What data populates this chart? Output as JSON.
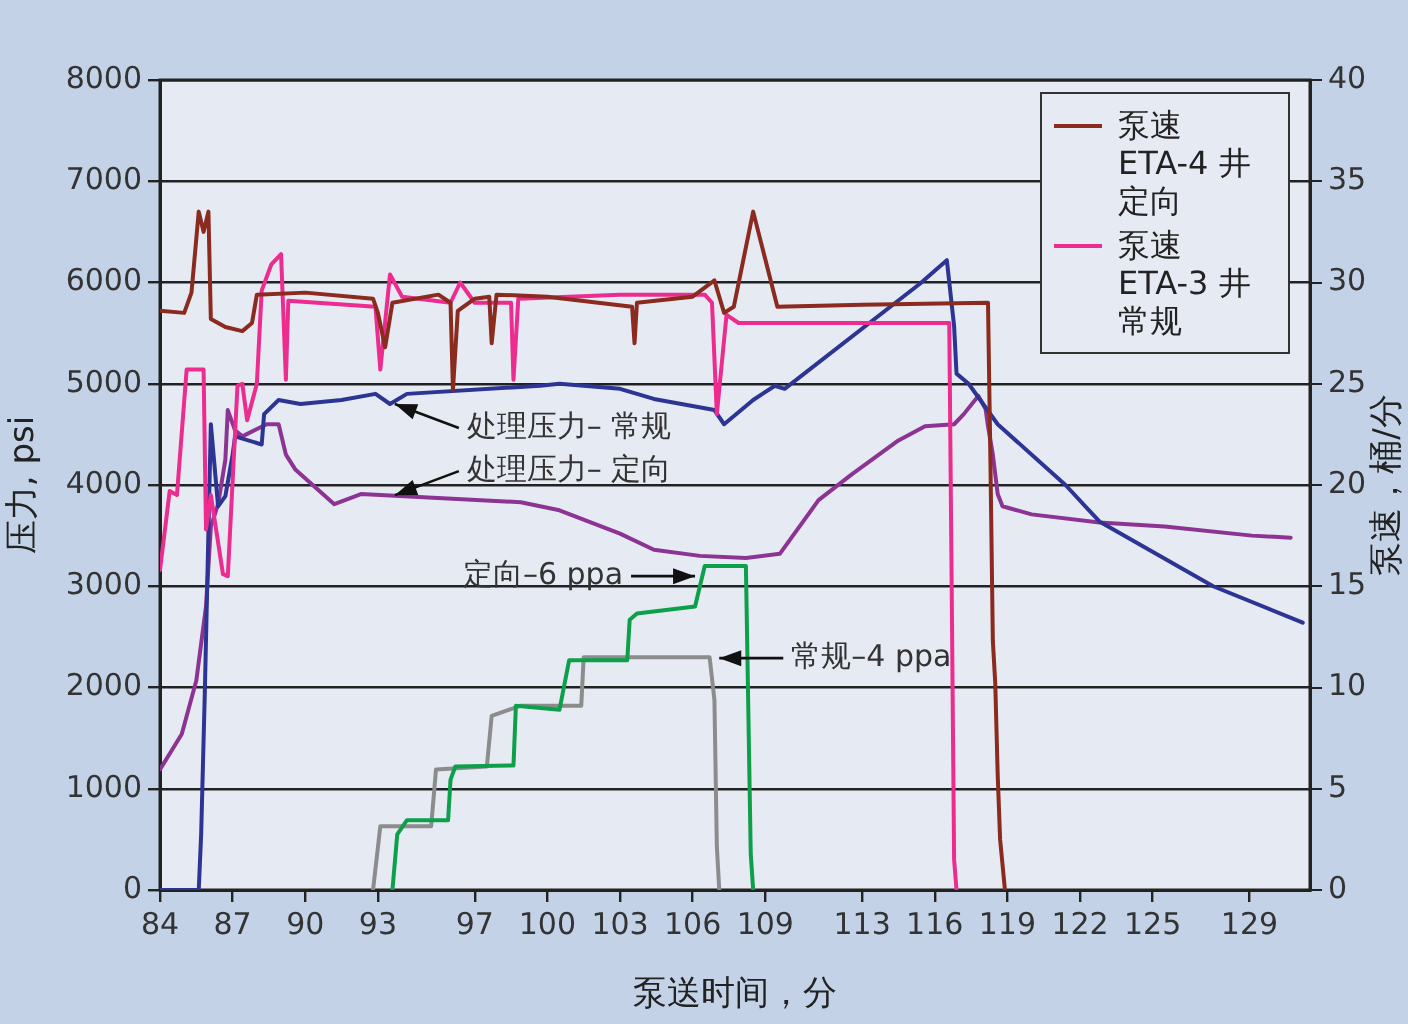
{
  "chart_data": {
    "type": "line",
    "xlabel": "泵送时间，分",
    "ylabel": "压力, psi",
    "y2label": "泵速，桶/分",
    "xlim": [
      84,
      131.5
    ],
    "xticks": [
      84,
      87,
      90,
      93,
      97,
      100,
      103,
      106,
      109,
      113,
      116,
      119,
      122,
      125,
      129
    ],
    "ylim": [
      0,
      8000
    ],
    "yticks": [
      0,
      1000,
      2000,
      3000,
      4000,
      5000,
      6000,
      7000,
      8000
    ],
    "y2lim": [
      0,
      40
    ],
    "y2ticks": [
      0,
      5,
      10,
      15,
      20,
      25,
      30,
      35,
      40
    ],
    "grid": "y",
    "legend": "top right",
    "series": [
      {
        "name": "泵速ETA-4 井定向",
        "color": "#8b2a1e",
        "axis": "y2",
        "x": [
          84,
          85.0,
          85.3,
          85.6,
          85.8,
          86.0,
          86.1,
          86.7,
          87.4,
          87.8,
          88.0,
          90,
          92.8,
          93.0,
          93.3,
          93.6,
          95.5,
          96.0,
          96.1,
          96.3,
          97.0,
          97.6,
          97.7,
          97.9,
          100,
          103.5,
          103.6,
          103.7,
          106.0,
          106.9,
          107.3,
          107.7,
          108.5,
          109.5,
          113,
          118.2,
          118.3,
          118.4,
          118.5,
          118.6,
          118.7,
          118.9
        ],
        "values": [
          28.6,
          28.5,
          29.5,
          33.5,
          32.5,
          33.5,
          28.2,
          27.8,
          27.6,
          28.0,
          29.4,
          29.5,
          29.2,
          28.5,
          26.8,
          29.0,
          29.4,
          29.0,
          24.7,
          28.6,
          29.2,
          29.3,
          27.0,
          29.4,
          29.3,
          28.8,
          27.0,
          29.0,
          29.3,
          30.1,
          28.5,
          28.8,
          33.5,
          28.8,
          28.9,
          29.0,
          21.2,
          12.3,
          10.2,
          5.7,
          2.5,
          0
        ]
      },
      {
        "name": "泵速ETA-3 井常规",
        "color": "#ec2c8f",
        "axis": "y2",
        "x": [
          84,
          84.4,
          84.7,
          85.1,
          85.8,
          85.9,
          86.1,
          86.6,
          86.8,
          87.2,
          87.4,
          87.6,
          88.0,
          88.2,
          88.6,
          89.0,
          89.2,
          89.3,
          92.9,
          93.1,
          93.5,
          94.0,
          96.0,
          96.4,
          97,
          98.5,
          98.6,
          98.8,
          103,
          106.5,
          106.8,
          107.0,
          107.4,
          107.9,
          116.6,
          116.7,
          116.8,
          116.9
        ],
        "values": [
          15.8,
          19.7,
          19.5,
          25.7,
          25.7,
          17.8,
          19.5,
          15.6,
          15.5,
          24.9,
          25.0,
          23.2,
          25.0,
          29.6,
          30.9,
          31.4,
          25.2,
          29.1,
          28.8,
          25.7,
          30.4,
          29.3,
          29.0,
          30.0,
          29.0,
          29.0,
          25.2,
          29.2,
          29.4,
          29.4,
          29.0,
          23.5,
          28.4,
          28.0,
          28.0,
          15,
          1.5,
          0
        ]
      },
      {
        "color": "#2c3594",
        "x": [
          84,
          85.6,
          85.7,
          85.85,
          86.1,
          86.4,
          86.7,
          87.0,
          87.1,
          88.2,
          88.3,
          88.9,
          89.8,
          91.5,
          92.9,
          93.5,
          94.2,
          99.7,
          100.5,
          103.0,
          104.4,
          106.9,
          107.3,
          108.5,
          109.4,
          109.8,
          115.4,
          116.5,
          116.8,
          116.9,
          117.4,
          118.6,
          121.4,
          122.8,
          127.5,
          131.2
        ],
        "values": [
          0,
          0,
          550,
          1940,
          4600,
          3790,
          3890,
          4300,
          4480,
          4400,
          4700,
          4840,
          4800,
          4840,
          4900,
          4800,
          4900,
          4980,
          5000,
          4950,
          4850,
          4740,
          4600,
          4840,
          4980,
          4950,
          5990,
          6220,
          5570,
          5100,
          5000,
          4600,
          4000,
          3640,
          3000,
          2640
        ]
      },
      {
        "color": "#8c3493",
        "x": [
          84,
          84.9,
          85.5,
          85.9,
          86.1,
          86.4,
          86.7,
          86.8,
          87.1,
          87.4,
          88.4,
          88.9,
          89.2,
          89.6,
          91.2,
          92.3,
          98.9,
          100.5,
          103.0,
          104.4,
          106.3,
          108.2,
          109.6,
          111.2,
          112.6,
          114.5,
          115.6,
          116.8,
          117.2,
          117.8,
          118.1,
          118.2,
          118.4,
          118.6,
          118.8,
          120.0,
          122.8,
          125.5,
          129.1,
          130.7
        ],
        "values": [
          1190,
          1540,
          2070,
          2800,
          3590,
          3810,
          4250,
          4740,
          4540,
          4480,
          4600,
          4600,
          4300,
          4150,
          3810,
          3910,
          3830,
          3750,
          3520,
          3360,
          3300,
          3280,
          3320,
          3850,
          4110,
          4440,
          4580,
          4600,
          4700,
          4880,
          4750,
          4580,
          4300,
          3910,
          3790,
          3710,
          3630,
          3590,
          3500,
          3480
        ]
      },
      {
        "color": "#0da04b",
        "x": [
          93.6,
          93.8,
          94.2,
          95.9,
          96.0,
          96.2,
          98.6,
          98.7,
          100.5,
          100.9,
          103.3,
          103.4,
          103.7,
          106.1,
          106.5,
          108.2,
          108.4,
          108.5
        ],
        "values": [
          0,
          550,
          690,
          690,
          1090,
          1220,
          1230,
          1820,
          1780,
          2270,
          2270,
          2670,
          2730,
          2800,
          3200,
          3200,
          360,
          0
        ]
      },
      {
        "color": "#8c8c8c",
        "x": [
          92.8,
          93.1,
          95.2,
          95.4,
          97.5,
          97.7,
          98.9,
          101.4,
          101.5,
          106.7,
          106.9,
          107.0,
          107.1
        ],
        "values": [
          0,
          630,
          630,
          1190,
          1220,
          1720,
          1820,
          1820,
          2300,
          2300,
          1880,
          430,
          0
        ]
      }
    ],
    "annotations": [
      {
        "text": "处理压力– 常规",
        "x": 93.7,
        "y": 4800
      },
      {
        "text": "处理压力– 定向",
        "x": 93.7,
        "y": 3900
      },
      {
        "text": "定向–6 ppa",
        "x": 106.1,
        "y": 3100
      },
      {
        "text": "常规–4 ppa",
        "x": 107.1,
        "y": 2290
      }
    ]
  }
}
